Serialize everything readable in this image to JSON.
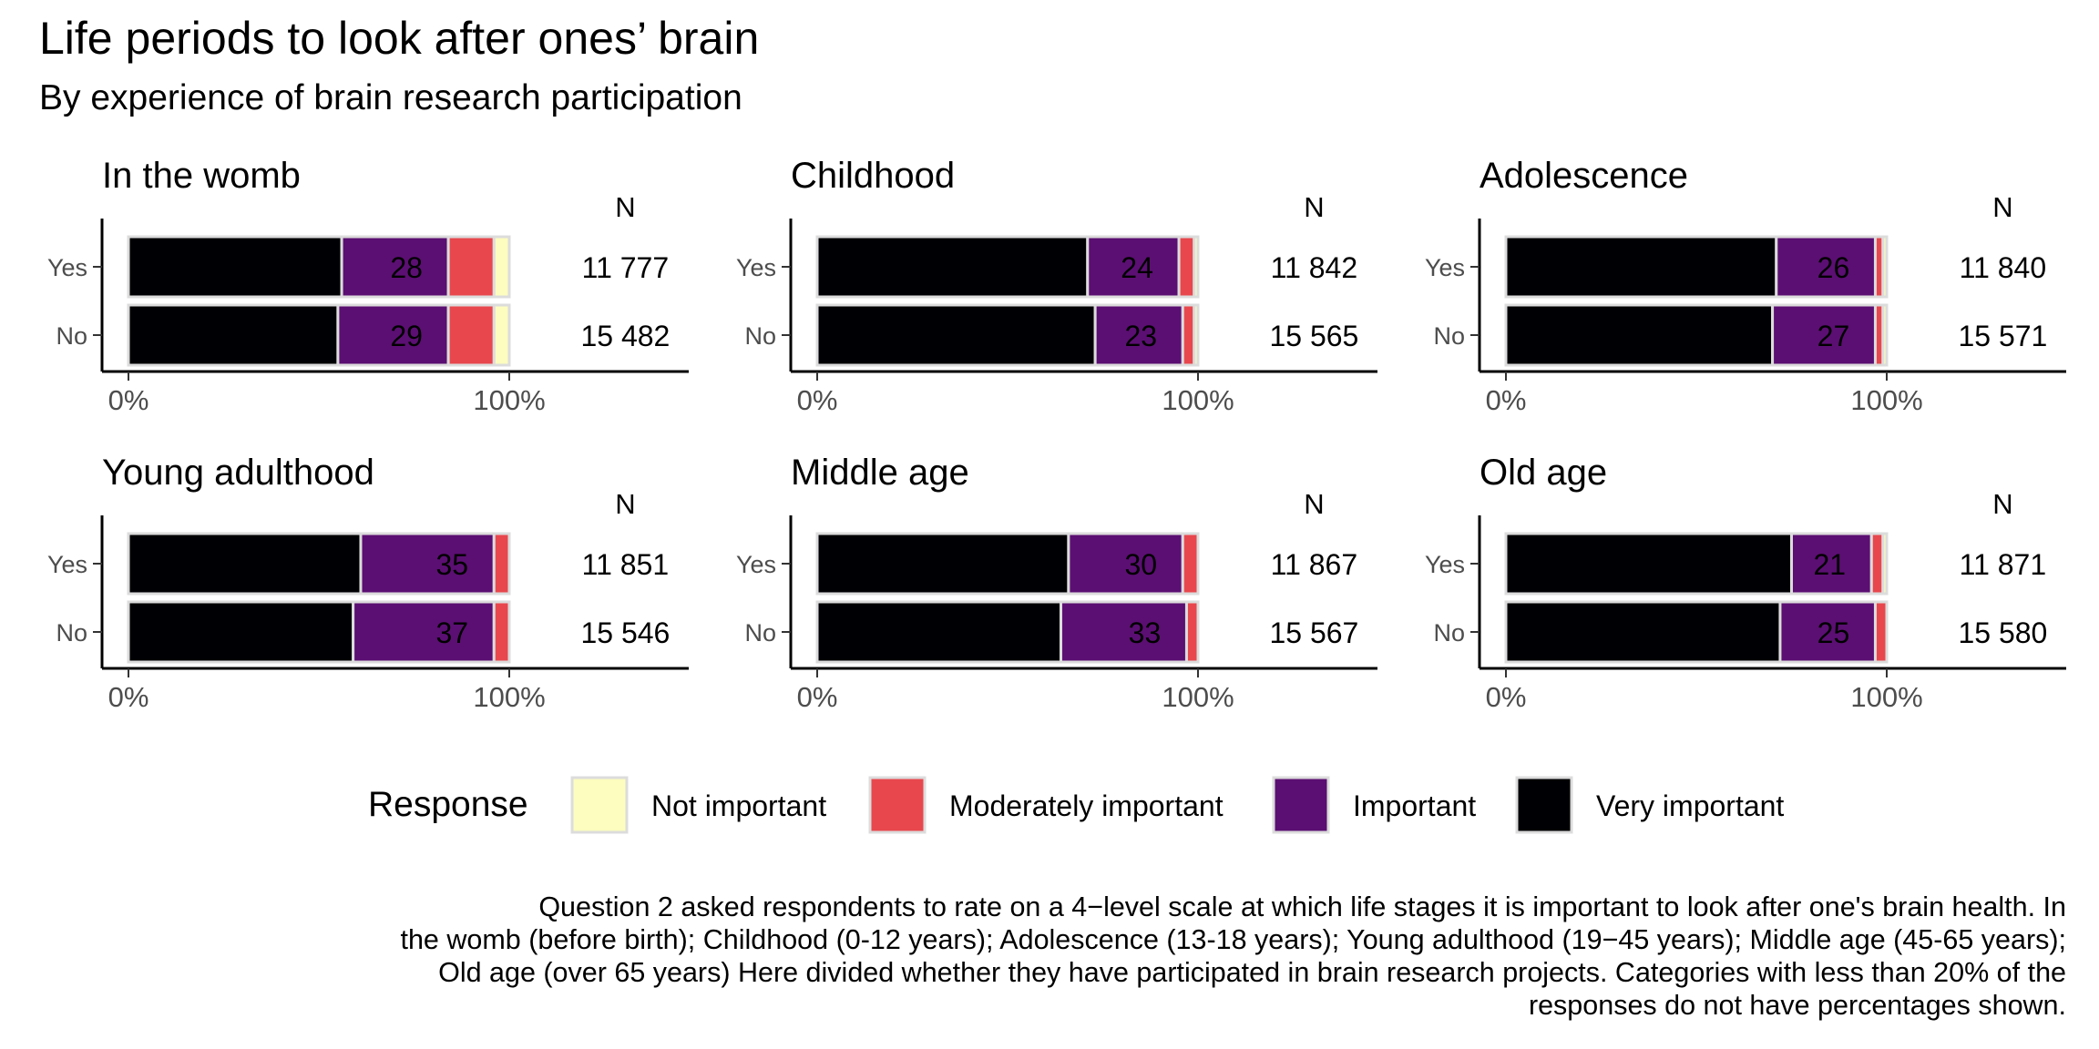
{
  "title": "Life periods to look after ones’ brain",
  "subtitle": "By experience of brain research participation",
  "caption_lines": [
    "Question 2 asked respondents to rate on a 4−level scale at which life stages it is important to look after one's brain health. In",
    "the womb (before birth); Childhood (0-12 years); Adolescence (13-18 years); Young adulthood (19−45 years); Middle age (45-65 years);",
    "Old age (over 65 years) Here divided whether they have participated in brain research projects. Categories with less than 20% of the",
    "responses do not have percentages shown."
  ],
  "legend": {
    "title": "Response",
    "position": "bottom",
    "items": [
      {
        "label": "Not important",
        "color": "#FCFDBF"
      },
      {
        "label": "Moderately important",
        "color": "#E8474E"
      },
      {
        "label": "Important",
        "color": "#5B0F72"
      },
      {
        "label": "Very important",
        "color": "#000004"
      }
    ]
  },
  "n_header": "N",
  "chart_data": {
    "type": "bar",
    "orientation": "horizontal",
    "stacked": "percent",
    "x_ticks": [
      "0%",
      "100%"
    ],
    "xlim": [
      0,
      150
    ],
    "categories": [
      "Yes",
      "No"
    ],
    "series_order": [
      "Very important",
      "Important",
      "Moderately important",
      "Not important"
    ],
    "label_threshold": 20,
    "panels": [
      {
        "title": "In the womb",
        "rows": [
          {
            "category": "Yes",
            "n": "11 777",
            "values": {
              "Very important": 56,
              "Important": 28,
              "Moderately important": 12,
              "Not important": 4
            }
          },
          {
            "category": "No",
            "n": "15 482",
            "values": {
              "Very important": 55,
              "Important": 29,
              "Moderately important": 12,
              "Not important": 4
            }
          }
        ]
      },
      {
        "title": "Childhood",
        "rows": [
          {
            "category": "Yes",
            "n": "11 842",
            "values": {
              "Very important": 71,
              "Important": 24,
              "Moderately important": 4,
              "Not important": 1
            }
          },
          {
            "category": "No",
            "n": "15 565",
            "values": {
              "Very important": 73,
              "Important": 23,
              "Moderately important": 3,
              "Not important": 1
            }
          }
        ]
      },
      {
        "title": "Adolescence",
        "rows": [
          {
            "category": "Yes",
            "n": "11 840",
            "values": {
              "Very important": 71,
              "Important": 26,
              "Moderately important": 2,
              "Not important": 1
            }
          },
          {
            "category": "No",
            "n": "15 571",
            "values": {
              "Very important": 70,
              "Important": 27,
              "Moderately important": 2,
              "Not important": 1
            }
          }
        ]
      },
      {
        "title": "Young adulthood",
        "rows": [
          {
            "category": "Yes",
            "n": "11 851",
            "values": {
              "Very important": 61,
              "Important": 35,
              "Moderately important": 4,
              "Not important": 0
            }
          },
          {
            "category": "No",
            "n": "15 546",
            "values": {
              "Very important": 59,
              "Important": 37,
              "Moderately important": 4,
              "Not important": 0
            }
          }
        ]
      },
      {
        "title": "Middle age",
        "rows": [
          {
            "category": "Yes",
            "n": "11 867",
            "values": {
              "Very important": 66,
              "Important": 30,
              "Moderately important": 4,
              "Not important": 0
            }
          },
          {
            "category": "No",
            "n": "15 567",
            "values": {
              "Very important": 64,
              "Important": 33,
              "Moderately important": 3,
              "Not important": 0
            }
          }
        ]
      },
      {
        "title": "Old age",
        "rows": [
          {
            "category": "Yes",
            "n": "11 871",
            "values": {
              "Very important": 75,
              "Important": 21,
              "Moderately important": 3,
              "Not important": 1
            }
          },
          {
            "category": "No",
            "n": "15 580",
            "values": {
              "Very important": 72,
              "Important": 25,
              "Moderately important": 3,
              "Not important": 0
            }
          }
        ]
      }
    ]
  }
}
